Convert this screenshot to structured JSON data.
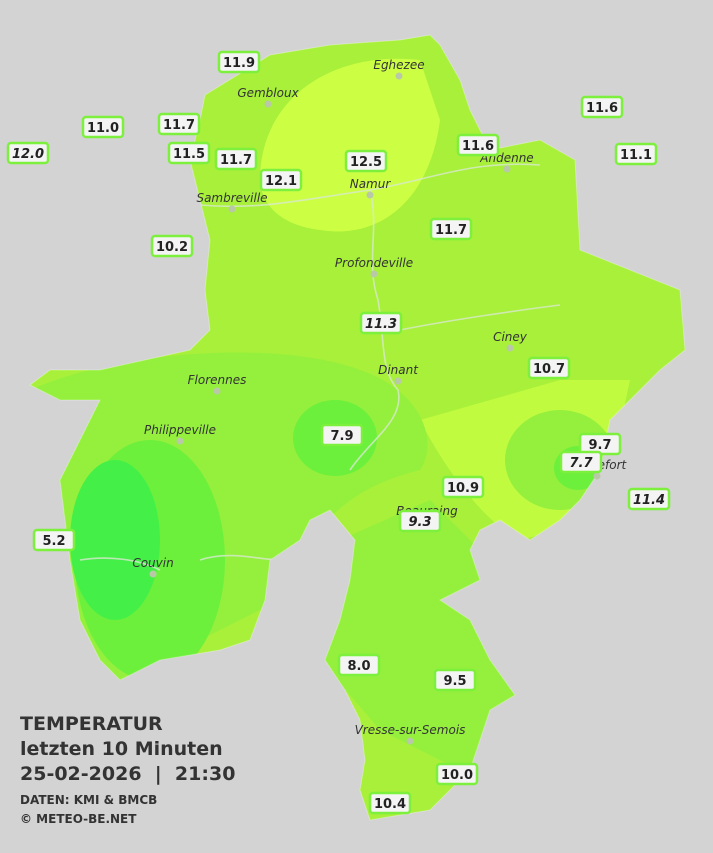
{
  "title": {
    "line1": "TEMPERATUR",
    "line2": "letzten 10 Minuten",
    "line3": "25-02-2026  |  21:30",
    "source": "DATEN: KMI & BMCB",
    "copyright": "© METEO-BE.NET"
  },
  "cities": [
    "Eghezee",
    "Gembloux",
    "Andenne",
    "Namur",
    "Sambreville",
    "Profondeville",
    "Ciney",
    "Dinant",
    "Florennes",
    "Philippeville",
    "Beauraing",
    "Rochefort",
    "Couvin",
    "Vresse-sur-Semois"
  ],
  "stations": [
    "11.9",
    "11.0",
    "11.7",
    "12.0",
    "11.5",
    "11.7",
    "12.1",
    "12.5",
    "11.6",
    "11.6",
    "11.1",
    "10.2",
    "11.7",
    "11.3",
    "10.7",
    "7.9",
    "9.7",
    "7.7",
    "10.9",
    "11.4",
    "9.3",
    "5.2",
    "8.0",
    "9.5",
    "10.0",
    "10.4"
  ]
}
